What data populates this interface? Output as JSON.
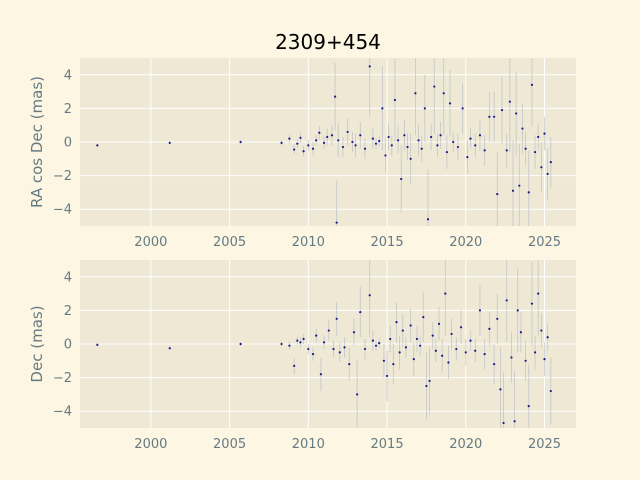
{
  "colors": {
    "figure_bg": "#fdf6e3",
    "axes_bg": "#eee8d5",
    "grid": "#ffffff",
    "tick_text": "#657b83",
    "point": "#1a1a8c",
    "errorbar": "#b8bec4"
  },
  "chart_data": {
    "title": "2309+454",
    "type": "scatter",
    "xlim": [
      1995.5,
      2027.0
    ],
    "xticks": [
      2000,
      2005,
      2010,
      2015,
      2020,
      2025
    ],
    "yticks": [
      -4,
      -2,
      0,
      2,
      4
    ],
    "grid": true,
    "panels": [
      {
        "ylabel": "RA cos Dec (mas)",
        "ylim": [
          -5.0,
          5.0
        ],
        "points": [
          [
            1996.6,
            -0.2,
            0.1
          ],
          [
            2001.2,
            -0.05,
            0.1
          ],
          [
            2005.7,
            0.0,
            0.1
          ],
          [
            2008.3,
            -0.05,
            0.15
          ],
          [
            2008.8,
            0.2,
            0.25
          ],
          [
            2009.1,
            -0.45,
            0.3
          ],
          [
            2009.3,
            -0.1,
            0.25
          ],
          [
            2009.5,
            0.25,
            0.3
          ],
          [
            2009.7,
            -0.55,
            0.3
          ],
          [
            2010.0,
            -0.2,
            0.3
          ],
          [
            2010.3,
            -0.4,
            0.4
          ],
          [
            2010.5,
            0.1,
            0.3
          ],
          [
            2010.7,
            0.55,
            0.4
          ],
          [
            2011.0,
            -0.05,
            0.4
          ],
          [
            2011.2,
            0.3,
            0.5
          ],
          [
            2011.5,
            0.4,
            0.6
          ],
          [
            2011.7,
            2.7,
            2.0
          ],
          [
            2011.8,
            -4.8,
            2.5
          ],
          [
            2011.9,
            0.1,
            1.0
          ],
          [
            2012.2,
            -0.3,
            0.6
          ],
          [
            2012.5,
            0.6,
            0.8
          ],
          [
            2012.8,
            0.0,
            0.6
          ],
          [
            2013.0,
            -0.2,
            0.7
          ],
          [
            2013.3,
            0.4,
            0.8
          ],
          [
            2013.6,
            -0.4,
            0.6
          ],
          [
            2013.9,
            4.5,
            3.0
          ],
          [
            2014.1,
            0.2,
            0.6
          ],
          [
            2014.3,
            -0.1,
            0.3
          ],
          [
            2014.5,
            0.05,
            0.3
          ],
          [
            2014.7,
            2.0,
            2.5
          ],
          [
            2014.9,
            -0.8,
            1.0
          ],
          [
            2015.1,
            0.3,
            0.8
          ],
          [
            2015.3,
            -0.2,
            0.6
          ],
          [
            2015.5,
            2.5,
            2.5
          ],
          [
            2015.7,
            0.1,
            0.8
          ],
          [
            2015.9,
            -2.2,
            2.0
          ],
          [
            2016.1,
            0.4,
            0.9
          ],
          [
            2016.3,
            -0.3,
            0.8
          ],
          [
            2016.5,
            -1.0,
            1.5
          ],
          [
            2016.8,
            2.9,
            2.5
          ],
          [
            2017.0,
            0.1,
            0.9
          ],
          [
            2017.2,
            -0.4,
            0.8
          ],
          [
            2017.4,
            2.0,
            2.0
          ],
          [
            2017.6,
            -4.6,
            3.0
          ],
          [
            2017.8,
            0.3,
            0.8
          ],
          [
            2018.0,
            3.3,
            2.8
          ],
          [
            2018.2,
            -0.2,
            0.7
          ],
          [
            2018.4,
            0.4,
            0.8
          ],
          [
            2018.6,
            2.9,
            2.5
          ],
          [
            2018.8,
            -0.6,
            1.0
          ],
          [
            2019.0,
            2.3,
            2.0
          ],
          [
            2019.2,
            0.0,
            0.6
          ],
          [
            2019.5,
            -0.3,
            0.8
          ],
          [
            2019.8,
            2.0,
            1.5
          ],
          [
            2020.1,
            -0.9,
            1.0
          ],
          [
            2020.3,
            0.2,
            0.6
          ],
          [
            2020.6,
            -0.2,
            0.7
          ],
          [
            2020.9,
            0.4,
            0.9
          ],
          [
            2021.2,
            -0.5,
            0.9
          ],
          [
            2021.5,
            1.5,
            1.5
          ],
          [
            2021.8,
            1.5,
            1.5
          ],
          [
            2022.0,
            -3.1,
            2.5
          ],
          [
            2022.3,
            1.9,
            2.0
          ],
          [
            2022.6,
            -0.5,
            1.0
          ],
          [
            2022.8,
            2.4,
            3.0
          ],
          [
            2023.0,
            -2.9,
            3.0
          ],
          [
            2023.2,
            1.7,
            2.5
          ],
          [
            2023.4,
            -2.6,
            2.5
          ],
          [
            2023.6,
            0.8,
            1.5
          ],
          [
            2023.8,
            -0.4,
            1.0
          ],
          [
            2024.0,
            -3.0,
            2.5
          ],
          [
            2024.2,
            3.4,
            2.5
          ],
          [
            2024.4,
            -0.6,
            1.0
          ],
          [
            2024.6,
            0.3,
            0.8
          ],
          [
            2024.8,
            -1.5,
            1.5
          ],
          [
            2025.0,
            0.5,
            1.0
          ],
          [
            2025.2,
            -1.9,
            1.5
          ],
          [
            2025.4,
            -1.2,
            1.5
          ]
        ]
      },
      {
        "ylabel": "Dec (mas)",
        "ylim": [
          -5.0,
          5.0
        ],
        "points": [
          [
            1996.6,
            -0.05,
            0.1
          ],
          [
            2001.2,
            -0.25,
            0.1
          ],
          [
            2005.7,
            0.0,
            0.1
          ],
          [
            2008.3,
            0.0,
            0.15
          ],
          [
            2008.8,
            -0.1,
            0.25
          ],
          [
            2009.1,
            -1.3,
            0.5
          ],
          [
            2009.3,
            0.2,
            0.25
          ],
          [
            2009.5,
            0.1,
            0.3
          ],
          [
            2009.7,
            0.3,
            0.3
          ],
          [
            2010.0,
            -0.3,
            0.3
          ],
          [
            2010.3,
            -0.6,
            0.4
          ],
          [
            2010.5,
            0.5,
            0.4
          ],
          [
            2010.8,
            -1.8,
            1.0
          ],
          [
            2011.0,
            0.1,
            0.4
          ],
          [
            2011.3,
            0.8,
            0.6
          ],
          [
            2011.6,
            -0.3,
            0.5
          ],
          [
            2011.8,
            1.5,
            1.0
          ],
          [
            2012.0,
            -0.5,
            0.6
          ],
          [
            2012.3,
            -0.2,
            0.6
          ],
          [
            2012.6,
            -1.2,
            1.0
          ],
          [
            2012.9,
            0.7,
            0.8
          ],
          [
            2013.1,
            -3.0,
            2.0
          ],
          [
            2013.3,
            1.9,
            1.5
          ],
          [
            2013.6,
            -0.3,
            0.6
          ],
          [
            2013.9,
            2.9,
            2.5
          ],
          [
            2014.1,
            0.2,
            0.6
          ],
          [
            2014.3,
            -0.1,
            0.3
          ],
          [
            2014.5,
            0.05,
            0.3
          ],
          [
            2014.8,
            -1.0,
            1.0
          ],
          [
            2015.0,
            -1.9,
            1.5
          ],
          [
            2015.2,
            0.3,
            0.8
          ],
          [
            2015.4,
            -1.2,
            1.2
          ],
          [
            2015.6,
            1.3,
            1.2
          ],
          [
            2015.8,
            -0.5,
            1.0
          ],
          [
            2016.0,
            0.8,
            1.0
          ],
          [
            2016.2,
            -0.2,
            0.6
          ],
          [
            2016.5,
            1.1,
            1.0
          ],
          [
            2016.7,
            -0.9,
            1.0
          ],
          [
            2016.9,
            0.3,
            0.8
          ],
          [
            2017.1,
            -0.1,
            0.6
          ],
          [
            2017.3,
            1.6,
            1.5
          ],
          [
            2017.5,
            -2.5,
            2.0
          ],
          [
            2017.7,
            -2.2,
            2.0
          ],
          [
            2017.9,
            0.5,
            0.8
          ],
          [
            2018.1,
            -0.4,
            0.7
          ],
          [
            2018.3,
            1.2,
            1.0
          ],
          [
            2018.5,
            -0.7,
            1.0
          ],
          [
            2018.7,
            3.0,
            2.5
          ],
          [
            2018.9,
            -1.1,
            1.0
          ],
          [
            2019.1,
            0.6,
            0.9
          ],
          [
            2019.4,
            -0.3,
            0.7
          ],
          [
            2019.7,
            1.0,
            1.0
          ],
          [
            2020.0,
            -0.5,
            0.8
          ],
          [
            2020.3,
            0.2,
            0.6
          ],
          [
            2020.6,
            -0.4,
            0.7
          ],
          [
            2020.9,
            2.0,
            1.5
          ],
          [
            2021.2,
            -0.6,
            0.9
          ],
          [
            2021.5,
            0.9,
            1.0
          ],
          [
            2021.8,
            -1.2,
            1.2
          ],
          [
            2022.0,
            1.5,
            1.5
          ],
          [
            2022.2,
            -2.7,
            2.5
          ],
          [
            2022.4,
            -4.7,
            3.0
          ],
          [
            2022.6,
            2.6,
            2.5
          ],
          [
            2022.9,
            -0.8,
            1.5
          ],
          [
            2023.1,
            -4.6,
            3.0
          ],
          [
            2023.3,
            2.0,
            2.5
          ],
          [
            2023.5,
            0.7,
            1.2
          ],
          [
            2023.8,
            -1.0,
            1.2
          ],
          [
            2024.0,
            -3.7,
            2.5
          ],
          [
            2024.2,
            2.4,
            2.5
          ],
          [
            2024.4,
            -0.5,
            1.0
          ],
          [
            2024.6,
            3.0,
            2.5
          ],
          [
            2024.8,
            0.8,
            1.0
          ],
          [
            2025.0,
            -0.9,
            1.0
          ],
          [
            2025.2,
            0.4,
            0.8
          ],
          [
            2025.4,
            -2.8,
            2.0
          ]
        ]
      }
    ]
  }
}
